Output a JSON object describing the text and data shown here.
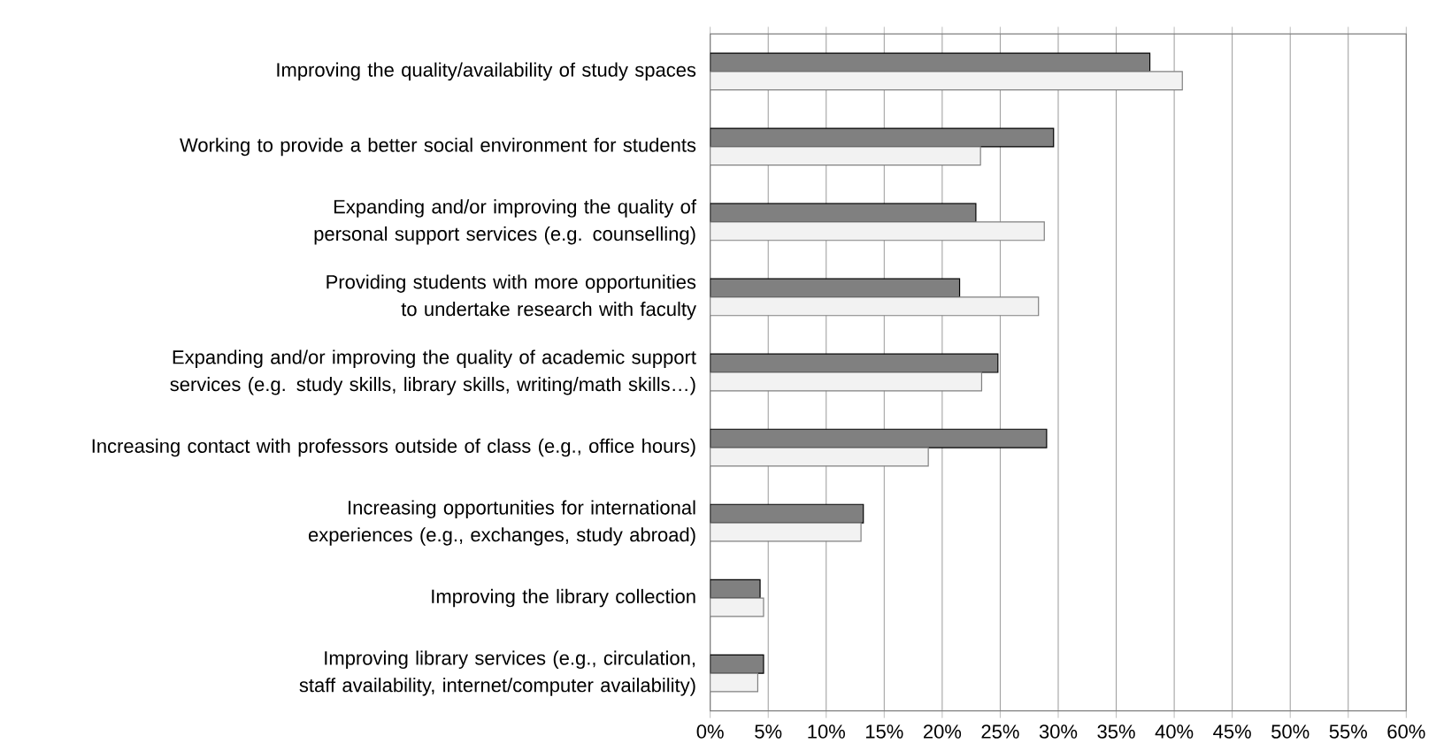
{
  "chart_data": {
    "type": "bar",
    "orientation": "horizontal",
    "grid": "x",
    "categories": [
      "Improving the quality/availability of study spaces",
      "Working to provide a better social environment for students",
      "Expanding and/or improving the quality of personal support services (e.g. counselling)",
      "Providing students with more opportunities to undertake research with faculty",
      "Expanding and/or improving the quality of academic support services (e.g. study skills, library skills, writing/math skills…)",
      "Increasing contact with professors outside of class (e.g., office hours)",
      "Increasing opportunities for international experiences (e.g., exchanges, study abroad)",
      "Improving the library collection",
      "Improving library services (e.g., circulation, staff availability, internet/computer availability)"
    ],
    "series": [
      {
        "color": "#808080",
        "values": [
          37.9,
          29.6,
          22.9,
          21.5,
          24.8,
          29.0,
          13.2,
          4.3,
          4.6
        ]
      },
      {
        "color": "#f2f2f2",
        "values": [
          40.7,
          23.3,
          28.8,
          28.3,
          23.4,
          18.8,
          13.0,
          4.6,
          4.1
        ]
      }
    ],
    "xlim": [
      0,
      60
    ],
    "xticks": [
      {
        "value": 0,
        "label": "0%"
      },
      {
        "value": 5,
        "label": "5%"
      },
      {
        "value": 10,
        "label": "10%"
      },
      {
        "value": 15,
        "label": "15%"
      },
      {
        "value": 20,
        "label": "20%"
      },
      {
        "value": 25,
        "label": "25%"
      },
      {
        "value": 30,
        "label": "30%"
      },
      {
        "value": 35,
        "label": "35%"
      },
      {
        "value": 40,
        "label": "40%"
      },
      {
        "value": 45,
        "label": "45%"
      },
      {
        "value": 50,
        "label": "50%"
      },
      {
        "value": 55,
        "label": "55%"
      },
      {
        "value": 60,
        "label": "60%"
      }
    ]
  }
}
